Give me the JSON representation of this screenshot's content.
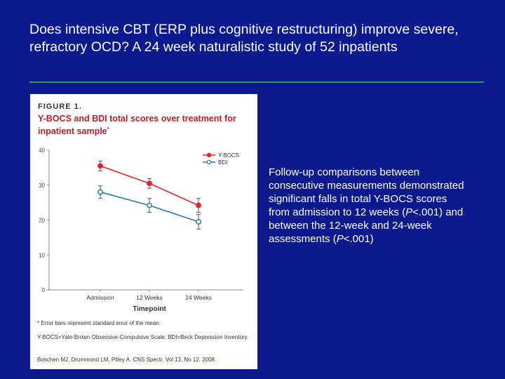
{
  "slide": {
    "title": "Does intensive CBT (ERP plus cognitive restructuring) improve severe, refractory OCD? A 24 week naturalistic study of 52 inpatients",
    "body_before_p1": "Follow-up comparisons between consecutive measurements demonstrated significant falls in total Y-BOCS scores from admission to 12 weeks (",
    "p1": "P",
    "body_mid": "<.001) and between the 12-week and 24-week assessments (",
    "p2": "P",
    "body_end": "<.001)"
  },
  "figure": {
    "heading": "FIGURE 1.",
    "caption": "Y-BOCS and BDI total scores over treatment for inpatient sample",
    "caption_marker": "*",
    "footnote_error": "* Error bars represent standard error of the mean.",
    "footnote_abbrev": "Y-BOCS=Yale-Brown Obsessive-Compulsive Scale; BDI=Beck Depression Inventory.",
    "citation": "Boschen MJ, Drummond LM, Pilley A. CNS Spectr. Vol 13, No 12. 2008."
  },
  "chart_data": {
    "type": "line",
    "categories": [
      "Admission",
      "12 Weeks",
      "24 Weeks"
    ],
    "xlabel": "Timepoint",
    "ylabel": "",
    "ylim": [
      0,
      40
    ],
    "yticks": [
      "0",
      "10",
      "20",
      "30",
      "40"
    ],
    "legend_position": "top-right",
    "grid": false,
    "series": [
      {
        "name": "Y-BOCS",
        "color": "#e0262b",
        "marker": "filled-circle",
        "values": [
          35.5,
          30.5,
          24.2
        ],
        "error": [
          1.4,
          1.4,
          2.0
        ]
      },
      {
        "name": "BDI",
        "color": "#2a7aa8",
        "marker": "open-circle",
        "values": [
          28.0,
          24.2,
          19.5
        ],
        "error": [
          1.8,
          2.0,
          2.1
        ]
      }
    ]
  }
}
